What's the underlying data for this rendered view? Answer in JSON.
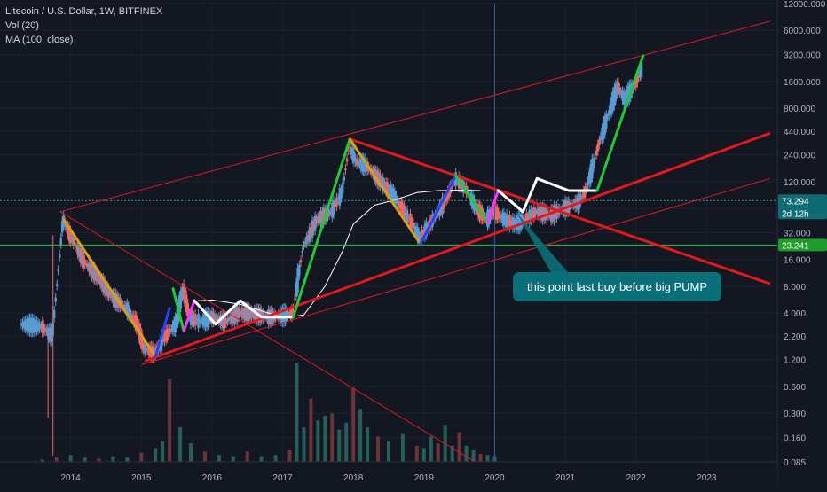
{
  "legend": {
    "symbol": "Litecoin / U.S. Dollar, 1W, BITFINEX",
    "vol": "Vol (20)",
    "ma": "MA (100, close)"
  },
  "annotation": "this point last buy before big PUMP",
  "colors": {
    "background": "#131722",
    "up_candle": "#5b9bd5",
    "down_candle": "#e66a6a",
    "ma_line": "#ffffff",
    "channel": "#e0191e",
    "green_line": "#22c934",
    "current_price_badge": "#0f6b73",
    "green_price_badge": "#1c9c2b",
    "annotation_box": "#0b6f7a"
  },
  "chart_data": {
    "type": "candlestick",
    "title": "Litecoin / U.S. Dollar, 1W, BITFINEX",
    "indicators": [
      "Vol (20)",
      "MA (100, close)"
    ],
    "y_scale": "log",
    "ylim": [
      0.085,
      12000
    ],
    "y_ticks": [
      "12000.000",
      "6000.000",
      "3200.000",
      "1600.000",
      "800.000",
      "440.000",
      "240.000",
      "120.000",
      "60.000",
      "32.000",
      "16.000",
      "8.000",
      "4.000",
      "2.200",
      "1.200",
      "0.600",
      "0.300",
      "0.160",
      "0.085"
    ],
    "y_tick_values": [
      12000,
      6000,
      3200,
      1600,
      800,
      440,
      240,
      120,
      60,
      32,
      16,
      8,
      4,
      2.2,
      1.2,
      0.6,
      0.3,
      0.16,
      0.085
    ],
    "x_ticks": [
      "2014",
      "2015",
      "2016",
      "2017",
      "2018",
      "2019",
      "2020",
      "2021",
      "2022",
      "2023"
    ],
    "xlim": [
      2013.0,
      2024.0
    ],
    "price_badges": [
      {
        "label": "73.294",
        "value": 73.294,
        "sublabel": "2d 12h"
      },
      {
        "label": "23.241",
        "value": 23.241
      }
    ],
    "price_path": [
      [
        2013.3,
        3.0
      ],
      [
        2013.6,
        2.8
      ],
      [
        2013.75,
        2.2
      ],
      [
        2013.9,
        45
      ],
      [
        2014.0,
        30
      ],
      [
        2014.2,
        15
      ],
      [
        2014.4,
        10
      ],
      [
        2014.6,
        6
      ],
      [
        2014.8,
        4.5
      ],
      [
        2014.95,
        3.0
      ],
      [
        2015.05,
        1.6
      ],
      [
        2015.2,
        1.4
      ],
      [
        2015.35,
        2.2
      ],
      [
        2015.5,
        3.0
      ],
      [
        2015.6,
        7.5
      ],
      [
        2015.7,
        3.5
      ],
      [
        2015.85,
        3.2
      ],
      [
        2016.0,
        3.6
      ],
      [
        2016.2,
        3.2
      ],
      [
        2016.4,
        4.0
      ],
      [
        2016.6,
        3.9
      ],
      [
        2016.8,
        3.6
      ],
      [
        2017.0,
        3.7
      ],
      [
        2017.15,
        4.0
      ],
      [
        2017.3,
        22
      ],
      [
        2017.5,
        45
      ],
      [
        2017.7,
        55
      ],
      [
        2017.85,
        90
      ],
      [
        2017.95,
        300
      ],
      [
        2018.05,
        200
      ],
      [
        2018.2,
        180
      ],
      [
        2018.4,
        120
      ],
      [
        2018.55,
        90
      ],
      [
        2018.7,
        60
      ],
      [
        2018.85,
        40
      ],
      [
        2018.95,
        28
      ],
      [
        2019.1,
        40
      ],
      [
        2019.3,
        70
      ],
      [
        2019.45,
        130
      ],
      [
        2019.6,
        100
      ],
      [
        2019.75,
        60
      ],
      [
        2019.9,
        45
      ],
      [
        2020.0,
        55
      ],
      [
        2020.15,
        45
      ],
      [
        2020.3,
        40
      ],
      [
        2020.45,
        45
      ],
      [
        2020.6,
        55
      ],
      [
        2020.8,
        50
      ],
      [
        2021.0,
        60
      ],
      [
        2021.2,
        70
      ],
      [
        2021.3,
        95
      ],
      [
        2021.4,
        180
      ],
      [
        2021.5,
        350
      ],
      [
        2021.6,
        600
      ],
      [
        2021.75,
        1400
      ],
      [
        2021.85,
        1000
      ],
      [
        2022.0,
        1500
      ],
      [
        2022.1,
        2200
      ]
    ],
    "ma_100": [
      [
        2015.8,
        5.5
      ],
      [
        2016.0,
        5.6
      ],
      [
        2016.4,
        5.0
      ],
      [
        2016.8,
        4.0
      ],
      [
        2017.0,
        3.5
      ],
      [
        2017.3,
        3.8
      ],
      [
        2017.6,
        8
      ],
      [
        2017.85,
        20
      ],
      [
        2018.0,
        40
      ],
      [
        2018.3,
        65
      ],
      [
        2018.6,
        75
      ],
      [
        2018.9,
        90
      ],
      [
        2019.2,
        95
      ],
      [
        2019.5,
        96
      ],
      [
        2019.8,
        95
      ]
    ],
    "volume_scale": 100,
    "volume": [
      [
        2013.6,
        2
      ],
      [
        2013.8,
        4
      ],
      [
        2014.0,
        6
      ],
      [
        2014.2,
        4
      ],
      [
        2014.4,
        3
      ],
      [
        2014.6,
        5
      ],
      [
        2014.8,
        4
      ],
      [
        2015.0,
        8
      ],
      [
        2015.2,
        12
      ],
      [
        2015.3,
        18
      ],
      [
        2015.4,
        72
      ],
      [
        2015.55,
        30
      ],
      [
        2015.7,
        16
      ],
      [
        2015.9,
        9
      ],
      [
        2016.1,
        6
      ],
      [
        2016.3,
        5
      ],
      [
        2016.5,
        9
      ],
      [
        2016.7,
        5
      ],
      [
        2016.9,
        6
      ],
      [
        2017.1,
        10
      ],
      [
        2017.2,
        86
      ],
      [
        2017.3,
        30
      ],
      [
        2017.4,
        55
      ],
      [
        2017.5,
        36
      ],
      [
        2017.6,
        40
      ],
      [
        2017.7,
        42
      ],
      [
        2017.8,
        28
      ],
      [
        2017.9,
        34
      ],
      [
        2018.0,
        64
      ],
      [
        2018.1,
        46
      ],
      [
        2018.2,
        30
      ],
      [
        2018.35,
        22
      ],
      [
        2018.5,
        18
      ],
      [
        2018.7,
        24
      ],
      [
        2018.9,
        14
      ],
      [
        2019.0,
        12
      ],
      [
        2019.1,
        22
      ],
      [
        2019.2,
        16
      ],
      [
        2019.3,
        32
      ],
      [
        2019.4,
        14
      ],
      [
        2019.5,
        26
      ],
      [
        2019.6,
        14
      ],
      [
        2019.7,
        10
      ],
      [
        2019.8,
        7
      ],
      [
        2019.9,
        6
      ],
      [
        2020.0,
        5
      ]
    ],
    "drawings": {
      "channel_thin_lines": [
        [
          [
            2013.85,
            55
          ],
          [
            2023.9,
            7600
          ]
        ],
        [
          [
            2015.0,
            1.05
          ],
          [
            2023.9,
            130
          ]
        ],
        [
          [
            2013.85,
            55
          ],
          [
            2019.9,
            0.07
          ]
        ]
      ],
      "channel_thick_lines": [
        [
          [
            2015.05,
            1.15
          ],
          [
            2023.9,
            420
          ]
        ],
        [
          [
            2017.95,
            360
          ],
          [
            2023.9,
            8.5
          ]
        ]
      ],
      "wave_segments": [
        {
          "color": "#d4a020",
          "points": [
            [
              2013.9,
              45
            ],
            [
              2015.2,
              1.3
            ]
          ]
        },
        {
          "color": "#2244ff",
          "points": [
            [
              2015.2,
              1.3
            ],
            [
              2015.4,
              4.5
            ]
          ]
        },
        {
          "color": "#22c934",
          "points": [
            [
              2015.45,
              7.5
            ],
            [
              2015.6,
              2.5
            ]
          ]
        },
        {
          "color": "#ff33ff",
          "points": [
            [
              2015.6,
              2.5
            ],
            [
              2015.75,
              5.5
            ]
          ]
        },
        {
          "color": "#ffffff",
          "points": [
            [
              2015.75,
              5.5
            ],
            [
              2016.05,
              3.0
            ],
            [
              2016.4,
              5.5
            ],
            [
              2016.7,
              3.6
            ],
            [
              2017.15,
              3.6
            ]
          ]
        },
        {
          "color": "#22c934",
          "points": [
            [
              2017.15,
              3.6
            ],
            [
              2017.95,
              360
            ]
          ]
        },
        {
          "color": "#d4a020",
          "points": [
            [
              2017.95,
              360
            ],
            [
              2018.95,
              24
            ]
          ]
        },
        {
          "color": "#2244ff",
          "points": [
            [
              2018.95,
              24
            ],
            [
              2019.45,
              140
            ]
          ]
        },
        {
          "color": "#22c934",
          "points": [
            [
              2019.45,
              140
            ],
            [
              2019.9,
              42
            ]
          ]
        },
        {
          "color": "#ff33ff",
          "points": [
            [
              2019.9,
              42
            ],
            [
              2020.05,
              95
            ]
          ]
        },
        {
          "color": "#ffffff",
          "points": [
            [
              2020.05,
              95
            ],
            [
              2020.4,
              55
            ],
            [
              2020.6,
              130
            ],
            [
              2021.05,
              95
            ],
            [
              2021.45,
              95
            ]
          ]
        },
        {
          "color": "#22c934",
          "points": [
            [
              2021.45,
              95
            ],
            [
              2022.1,
              3100
            ]
          ]
        }
      ],
      "horizontal_lines": [
        {
          "value": 23.241,
          "color": "#22c934"
        },
        {
          "value": 73.294,
          "color": "#3a9aa5"
        }
      ],
      "vertical_line_x": 2020.0,
      "callout_pointer": [
        [
          2020.3,
          55
        ],
        [
          2021.0,
          9
        ]
      ]
    }
  }
}
